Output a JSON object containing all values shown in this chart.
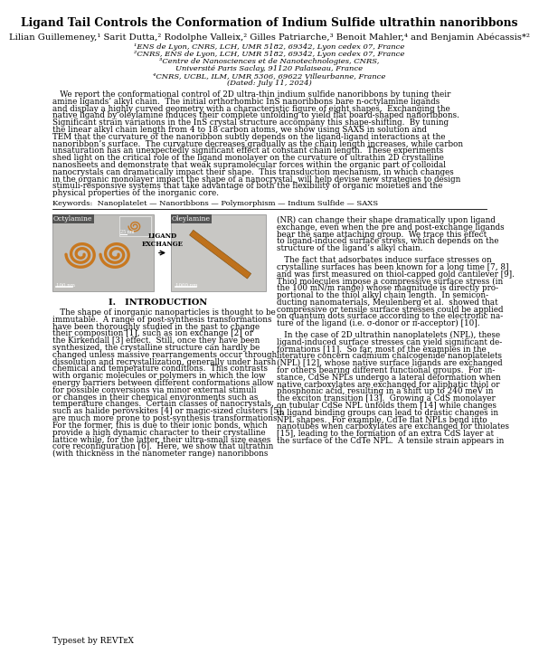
{
  "title": "Ligand Tail Controls the Conformation of Indium Sulfide ultrathin nanoribbons",
  "authors": "Lilian Guillemeney,¹ Sarit Dutta,² Rodolphe Valleix,² Gilles Patriarche,³ Benoit Mahler,⁴ and Benjamin Abécassis*²",
  "aff1": "¹ENS de Lyon, CNRS, LCH, UMR 5182, 69342, Lyon cedex 07, France",
  "aff2": "²CNRS, ENS de Lyon, LCH, UMR 5182, 69342, Lyon cedex 07, France",
  "aff3a": "³Centre de Nanosciences et de Nanotechnologies, CNRS,",
  "aff3b": "Université Paris Saclay, 91120 Palaiseau, France",
  "aff4": "⁴CNRS, UCBL, ILM, UMR 5306, 69622 Villeurbanne, France",
  "dated": "(Dated: July 11, 2024)",
  "abstract_lines": [
    "   We report the conformational control of 2D ultra-thin indium sulfide nanoribbons by tuning their",
    "amine ligands’ alkyl chain.  The initial orthorhombic InS nanoribbons bare n-octylamine ligands",
    "and display a highly curved geometry with a characteristic figure of eight shapes.  Exchanging the",
    "native ligand by oleylamine induces their complete unfolding to yield flat board-shaped nanoribbons.",
    "Significant strain variations in the InS crystal structure accompany this shape-shifting.  By tuning",
    "the linear alkyl chain length from 4 to 18 carbon atoms, we show using SAXS in solution and",
    "TEM that the curvature of the nanoribbon subtly depends on the ligand-ligand interactions at the",
    "nanoribbon’s surface.  The curvature decreases gradually as the chain length increases, while carbon",
    "unsaturation has an unexpectedly significant effect at constant chain length.  These experiments",
    "shed light on the critical role of the ligand monolayer on the curvature of ultrathin 2D crystalline",
    "nanosheets and demonstrate that weak supramolecular forces within the organic part of colloidal",
    "nanocrystals can dramatically impact their shape.  This transduction mechanism, in which changes",
    "in the organic monolayer impact the shape of a nanocrystal, will help devise new strategies to design",
    "stimuli-responsive systems that take advantage of both the flexibility of organic moieties and the",
    "physical properties of the inorganic core."
  ],
  "keywords": "Keywords:  Nanoplatelet — Nanoribbons — Polymorphism — Indium Sulfide — SAXS",
  "section1_title": "I.   INTRODUCTION",
  "intro_lines": [
    "   The shape of inorganic nanoparticles is thought to be",
    "immutable.  A range of post-synthesis transformations",
    "have been thoroughly studied in the past to change",
    "their composition [1], such as ion exchange [2] or",
    "the Kirkendall [3] effect.  Still, once they have been",
    "synthesized, the crystalline structure can hardly be",
    "changed unless massive rearrangements occur through",
    "dissolution and recrystallization, generally under harsh",
    "chemical and temperature conditions.  This contrasts",
    "with organic molecules or polymers in which the low",
    "energy barriers between different conformations allow",
    "for possible conversions via minor external stimuli",
    "or changes in their chemical environments such as",
    "temperature changes.  Certain classes of nanocrystals,",
    "such as halide perovskites [4] or magic-sized clusters [5],",
    "are much more prone to post-synthesis transformations.",
    "For the former, this is due to their ionic bonds, which",
    "provide a high dynamic character to their crystalline",
    "lattice while, for the latter, their ultra-small size eases",
    "core reconfiguration [6].  Here, we show that ultrathin",
    "(with thickness in the nanometer range) nanoribbons"
  ],
  "right_lines1": [
    "(NR) can change their shape dramatically upon ligand",
    "exchange, even when the pre and post-exchange ligands",
    "bear the same attaching group.  We trace this effect",
    "to ligand-induced surface stress, which depends on the",
    "structure of the ligand’s alkyl chain."
  ],
  "right_lines2": [
    "   The fact that adsorbates induce surface stresses on",
    "crystalline surfaces has been known for a long time [7, 8]",
    "and was first measured on thiol-capped gold cantilever [9].",
    "Thiol molecules impose a compressive surface stress (in",
    "the 100 mN/m range) whose magnitude is directly pro-",
    "portional to the thiol alkyl chain length.  In semicon-",
    "ducting nanomaterials, Meulenberg et al.  showed that",
    "compressive or tensile surface stresses could be applied",
    "on quantum dots surface according to the electronic na-",
    "ture of the ligand (i.e. σ-donor or π-acceptor) [10]."
  ],
  "right_lines3": [
    "   In the case of 2D ultrathin nanoplatelets (NPL), these",
    "ligand-induced surface stresses can yield significant de-",
    "formations [11].  So far, most of the examples in the",
    "literature concern cadmium chalcogenide nanoplatelets",
    "(NPL) [12], whose native surface ligands are exchanged",
    "for others bearing different functional groups.  For in-",
    "stance, CdSe NPLs undergo a lateral deformation when",
    "native carboxylates are exchanged for aliphatic thiol or",
    "phosphonic acid, resulting in a shift up to 240 meV in",
    "the exciton transition [13].  Growing a CdS monolayer",
    "on tubular CdSe NPL unfolds them [14] while changes",
    "in ligand binding groups can lead to drastic changes in",
    "NPL shapes.  For example, CdTe flat NPLs bend into",
    "nanotubes when carboxylates are exchanged for thiolates",
    "[15], leading to the formation of an extra CdS layer at",
    "the surface of the CdTe NPL.  A tensile strain appears in"
  ],
  "typeset": "Typeset by REVTᴇX",
  "fig_label_left": "Octylamine",
  "fig_label_right": "Oleylamine",
  "fig_arrow_label": "LIGAND\nEXCHANGE",
  "bg": "#ffffff",
  "fg": "#000000",
  "orange": "#c87820",
  "img_bg_left": "#c0bfbc",
  "img_bg_right": "#c8c7c4"
}
